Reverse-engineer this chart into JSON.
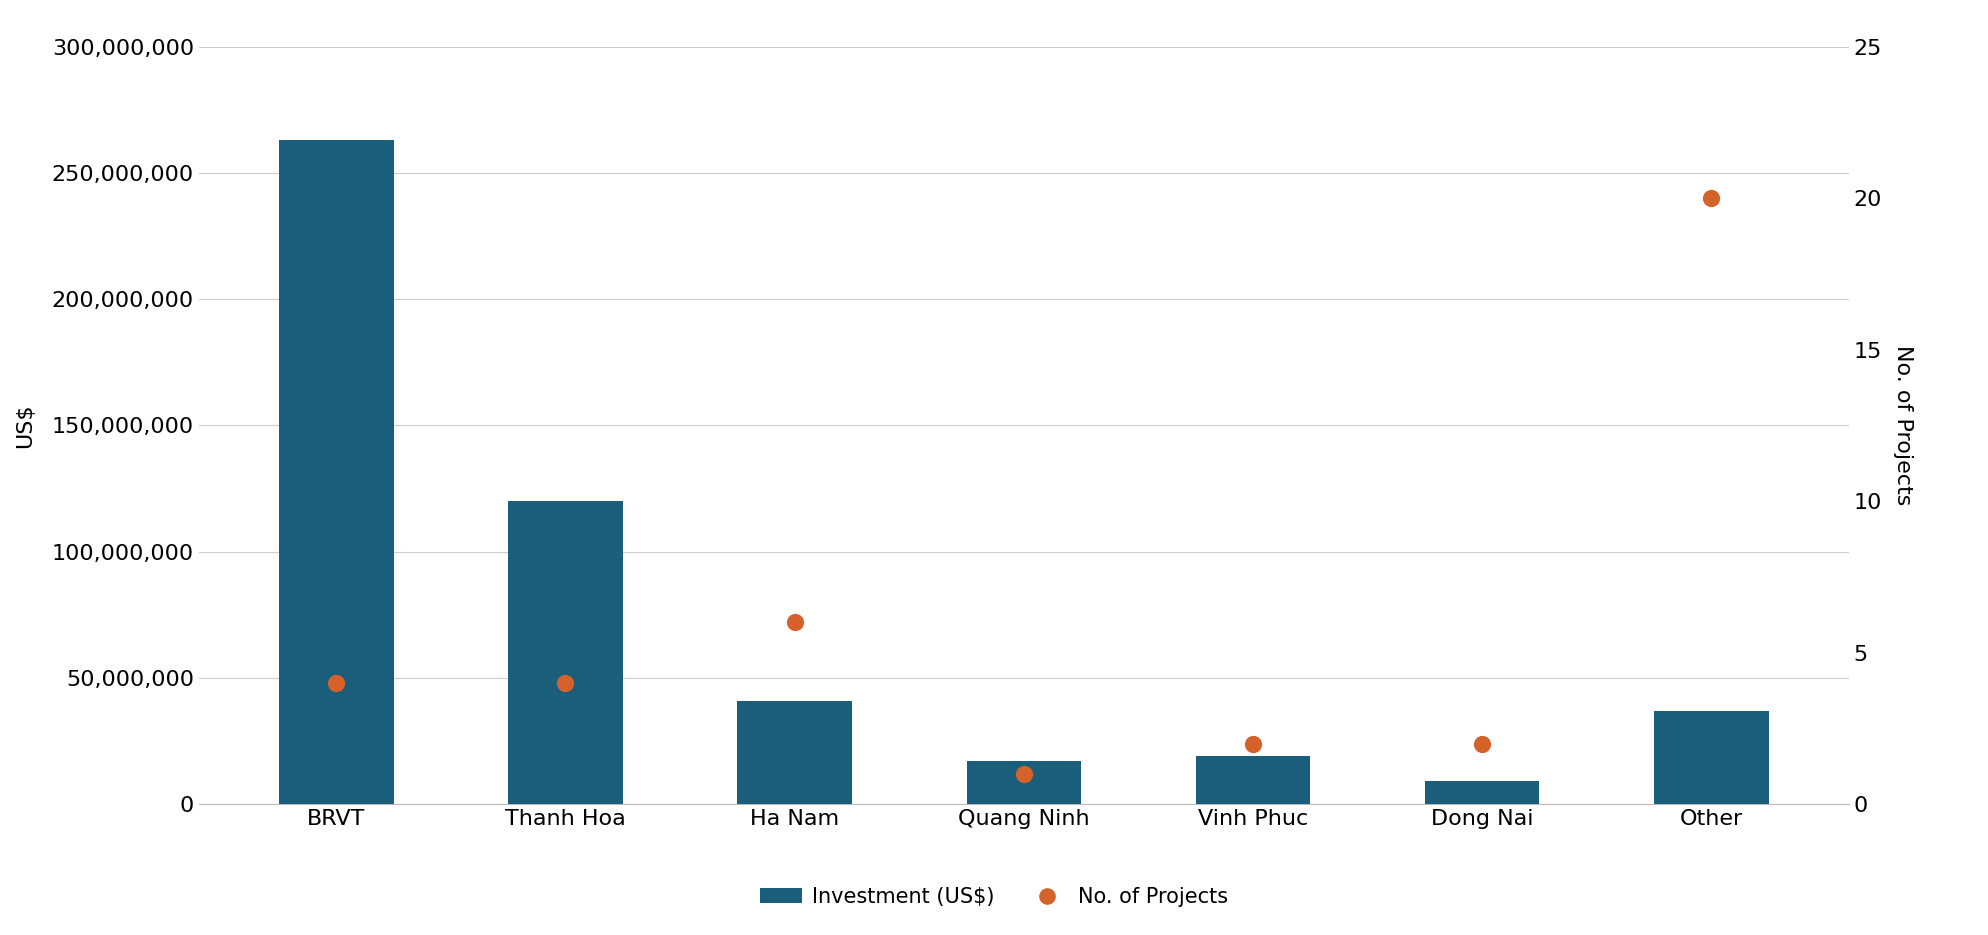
{
  "categories": [
    "BRVT",
    "Thanh Hoa",
    "Ha Nam",
    "Quang Ninh",
    "Vinh Phuc",
    "Dong Nai",
    "Other"
  ],
  "investment": [
    263000000,
    120000000,
    41000000,
    17000000,
    19000000,
    9000000,
    37000000
  ],
  "num_projects": [
    4,
    4,
    6,
    1,
    2,
    2,
    20
  ],
  "bar_color": "#1b5e7b",
  "dot_color": "#d4622a",
  "left_ylabel": "US$",
  "right_ylabel": "No. of Projects",
  "left_ylim": [
    0,
    300000000
  ],
  "right_ylim": [
    0,
    25
  ],
  "left_yticks": [
    0,
    50000000,
    100000000,
    150000000,
    200000000,
    250000000,
    300000000
  ],
  "right_yticks": [
    0,
    5,
    10,
    15,
    20,
    25
  ],
  "legend_labels": [
    "Investment (US$)",
    "No. of Projects"
  ],
  "background_color": "#ffffff",
  "grid_color": "#cccccc",
  "bar_width": 0.5,
  "dot_size": 130,
  "font_size_ticks": 16,
  "font_size_labels": 16,
  "font_size_legend": 15
}
